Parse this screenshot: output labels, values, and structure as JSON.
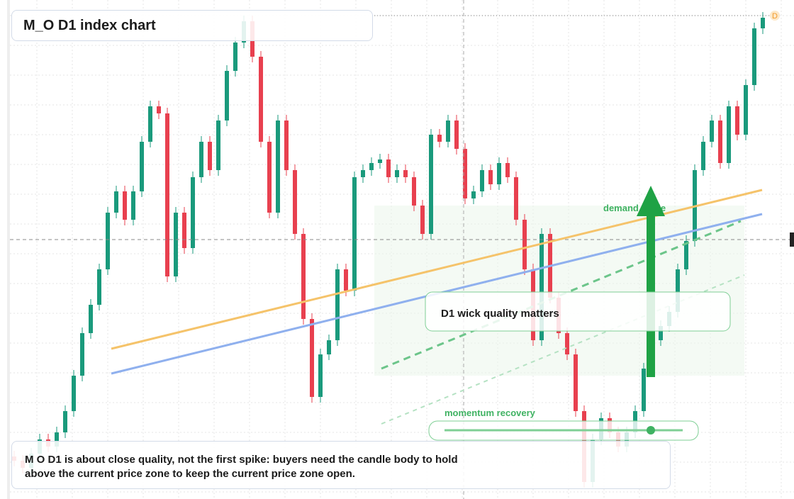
{
  "chart_data": {
    "type": "candlestick",
    "title": "M_O D1 index chart",
    "up_color": "#1a9a7c",
    "down_color": "#e8404f",
    "ylim": [
      0,
      70.4
    ],
    "candles": [
      [
        6.0,
        6.8,
        4.6,
        5.4
      ],
      [
        5.4,
        6.2,
        3.6,
        4.4
      ],
      [
        4.4,
        7.2,
        3.6,
        6.4
      ],
      [
        6.4,
        9.2,
        5.6,
        8.4
      ],
      [
        8.4,
        9.2,
        6.6,
        7.4
      ],
      [
        7.4,
        10.2,
        6.6,
        9.4
      ],
      [
        9.4,
        13.2,
        8.6,
        12.4
      ],
      [
        12.4,
        18.2,
        11.6,
        17.4
      ],
      [
        17.4,
        24.2,
        16.6,
        23.4
      ],
      [
        23.4,
        28.2,
        22.6,
        27.4
      ],
      [
        27.4,
        33.2,
        26.6,
        32.4
      ],
      [
        32.4,
        41.2,
        31.6,
        40.4
      ],
      [
        40.4,
        44.2,
        39.6,
        43.4
      ],
      [
        43.4,
        44.2,
        38.6,
        39.4
      ],
      [
        39.4,
        44.2,
        38.6,
        43.4
      ],
      [
        43.4,
        51.2,
        42.6,
        50.4
      ],
      [
        50.4,
        56.2,
        49.6,
        55.4
      ],
      [
        55.4,
        56.2,
        53.6,
        54.4
      ],
      [
        54.4,
        55.2,
        30.6,
        31.4
      ],
      [
        31.4,
        41.2,
        30.6,
        40.4
      ],
      [
        40.4,
        41.2,
        34.6,
        35.4
      ],
      [
        35.4,
        46.2,
        34.6,
        45.4
      ],
      [
        45.4,
        51.2,
        44.6,
        50.4
      ],
      [
        50.4,
        51.2,
        45.6,
        46.4
      ],
      [
        46.4,
        54.2,
        45.6,
        53.4
      ],
      [
        53.4,
        61.2,
        52.6,
        60.4
      ],
      [
        60.4,
        65.2,
        59.6,
        64.4
      ],
      [
        64.4,
        68.2,
        63.6,
        67.4
      ],
      [
        67.4,
        68.2,
        61.6,
        62.4
      ],
      [
        62.4,
        63.2,
        49.6,
        50.4
      ],
      [
        50.4,
        51.2,
        39.6,
        40.4
      ],
      [
        40.4,
        54.2,
        39.6,
        53.4
      ],
      [
        53.4,
        54.2,
        45.6,
        46.4
      ],
      [
        46.4,
        47.2,
        36.6,
        37.4
      ],
      [
        37.4,
        38.2,
        24.6,
        25.4
      ],
      [
        25.4,
        26.2,
        13.6,
        14.4
      ],
      [
        14.4,
        21.2,
        13.6,
        20.4
      ],
      [
        20.4,
        23.2,
        19.6,
        22.4
      ],
      [
        22.4,
        33.2,
        21.6,
        32.4
      ],
      [
        32.4,
        33.2,
        28.6,
        29.4
      ],
      [
        29.4,
        46.2,
        28.6,
        45.4
      ],
      [
        45.4,
        47.2,
        44.6,
        46.4
      ],
      [
        46.4,
        48.2,
        45.6,
        47.4
      ],
      [
        47.4,
        48.7,
        46.6,
        47.9
      ],
      [
        47.9,
        48.7,
        44.6,
        45.4
      ],
      [
        45.4,
        47.2,
        44.6,
        46.4
      ],
      [
        46.4,
        47.2,
        44.6,
        45.4
      ],
      [
        45.4,
        46.2,
        40.6,
        41.4
      ],
      [
        41.4,
        42.2,
        36.6,
        37.4
      ],
      [
        37.4,
        52.2,
        36.6,
        51.4
      ],
      [
        51.4,
        52.2,
        49.6,
        50.4
      ],
      [
        50.4,
        54.2,
        49.6,
        53.4
      ],
      [
        53.4,
        54.2,
        48.6,
        49.4
      ],
      [
        49.4,
        50.2,
        41.6,
        42.4
      ],
      [
        42.4,
        44.2,
        41.6,
        43.4
      ],
      [
        43.4,
        47.2,
        42.6,
        46.4
      ],
      [
        46.4,
        47.2,
        43.6,
        44.4
      ],
      [
        44.4,
        48.2,
        43.6,
        47.4
      ],
      [
        47.4,
        48.2,
        44.6,
        45.4
      ],
      [
        45.4,
        46.2,
        38.6,
        39.4
      ],
      [
        39.4,
        40.2,
        31.6,
        32.4
      ],
      [
        32.4,
        33.2,
        21.6,
        22.4
      ],
      [
        22.4,
        38.2,
        21.6,
        37.4
      ],
      [
        37.4,
        38.2,
        27.6,
        28.4
      ],
      [
        28.4,
        29.2,
        22.6,
        23.4
      ],
      [
        23.4,
        24.2,
        19.6,
        20.4
      ],
      [
        20.4,
        21.2,
        11.6,
        12.4
      ],
      [
        12.4,
        13.2,
        1.6,
        2.4
      ],
      [
        2.4,
        9.2,
        1.6,
        8.4
      ],
      [
        8.4,
        12.2,
        7.6,
        11.4
      ],
      [
        11.4,
        12.2,
        8.6,
        9.4
      ],
      [
        9.4,
        10.2,
        6.6,
        7.4
      ],
      [
        7.4,
        10.2,
        6.6,
        9.4
      ],
      [
        9.4,
        13.2,
        8.6,
        12.4
      ],
      [
        12.4,
        19.2,
        11.6,
        18.4
      ],
      [
        18.4,
        23.2,
        17.6,
        22.4
      ],
      [
        22.4,
        25.2,
        21.6,
        24.4
      ],
      [
        24.4,
        27.2,
        23.6,
        26.4
      ],
      [
        26.4,
        33.2,
        25.6,
        32.4
      ],
      [
        32.4,
        37.2,
        31.6,
        36.4
      ],
      [
        36.4,
        47.2,
        35.6,
        46.4
      ],
      [
        46.4,
        51.2,
        45.6,
        50.4
      ],
      [
        50.4,
        54.2,
        49.6,
        53.4
      ],
      [
        53.4,
        54.2,
        46.6,
        47.4
      ],
      [
        47.4,
        56.2,
        46.6,
        55.4
      ],
      [
        55.4,
        56.2,
        50.6,
        51.4
      ],
      [
        51.4,
        59.2,
        50.6,
        58.4
      ],
      [
        58.4,
        67.2,
        57.6,
        66.4
      ],
      [
        66.4,
        68.7,
        65.6,
        67.9
      ]
    ],
    "annotations": {
      "demand": "demand guide",
      "wick": "D1 wick quality matters",
      "momentum": "momentum recovery",
      "marker": "D",
      "note": "M O D1 is about close quality, not the first spike: buyers need the candle body to hold above the current price zone to keep the current price zone open."
    }
  }
}
